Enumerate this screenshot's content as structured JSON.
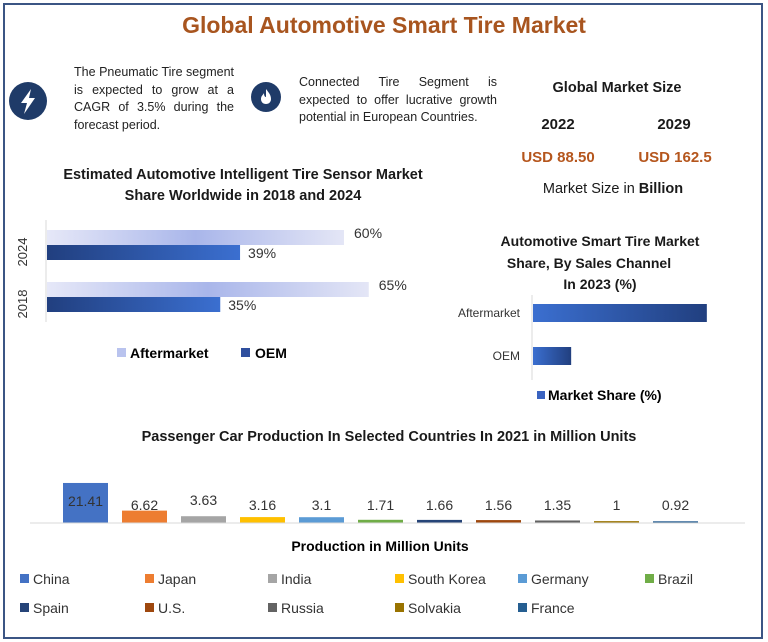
{
  "title": "Global Automotive Smart Tire Market",
  "highlights": [
    {
      "icon": "lightning-icon",
      "text": "The Pneumatic Tire segment is expected to grow at a CAGR of 3.5% during the forecast period."
    },
    {
      "icon": "flame-icon",
      "text": "Connected Tire Segment is expected to offer lucrative growth potential in European Countries."
    }
  ],
  "market_size": {
    "heading": "Global Market Size",
    "years": [
      "2022",
      "2029"
    ],
    "values": [
      "USD 88.50",
      "USD 162.5"
    ],
    "unit_prefix": "Market Size in ",
    "unit_bold": "Billion",
    "value_color": "#b5561d"
  },
  "chart_data": [
    {
      "type": "bar",
      "orientation": "horizontal",
      "title": "Estimated Automotive Intelligent Tire Sensor Market Share Worldwide in 2018 and 2024",
      "categories": [
        "2024",
        "2018"
      ],
      "series": [
        {
          "name": "Aftermarket",
          "values": [
            60,
            65
          ],
          "labels": [
            "60%",
            "65%"
          ],
          "color": "#c9cef2"
        },
        {
          "name": "OEM",
          "values": [
            39,
            35
          ],
          "labels": [
            "39%",
            "35%"
          ],
          "color": "#2f4f9e"
        }
      ],
      "legend": "bottom",
      "grid": false
    },
    {
      "type": "bar",
      "orientation": "horizontal",
      "title_lines": [
        "Automotive Smart Tire Market",
        "Share, By Sales Channel",
        "In 2023 (%)"
      ],
      "categories": [
        "Aftermarket",
        "OEM"
      ],
      "series": [
        {
          "name": "Market Share (%)",
          "values": [
            82,
            18
          ],
          "color": "#3a63c0"
        }
      ],
      "legend": "bottom",
      "grid": false
    },
    {
      "type": "bar",
      "title": "Passenger Car Production In Selected Countries In 2021 in Million Units",
      "xlabel": "Production in Million Units",
      "categories": [
        "China",
        "Japan",
        "India",
        "South Korea",
        "Germany",
        "Brazil",
        "Spain",
        "U.S.",
        "Russia",
        "Solvakia",
        "France"
      ],
      "values": [
        21.41,
        6.62,
        3.63,
        3.16,
        3.1,
        1.71,
        1.66,
        1.56,
        1.35,
        1,
        0.92
      ],
      "labels": [
        "21.41",
        "6.62",
        "3.63",
        "3.16",
        "3.1",
        "1.71",
        "1.66",
        "1.56",
        "1.35",
        "1",
        "0.92"
      ],
      "colors": [
        "#4472c4",
        "#ed7d31",
        "#a5a5a5",
        "#ffc000",
        "#5b9bd5",
        "#70ad47",
        "#264478",
        "#9e480e",
        "#636363",
        "#997300",
        "#255e91"
      ],
      "legend": "bottom",
      "grid": false
    }
  ]
}
